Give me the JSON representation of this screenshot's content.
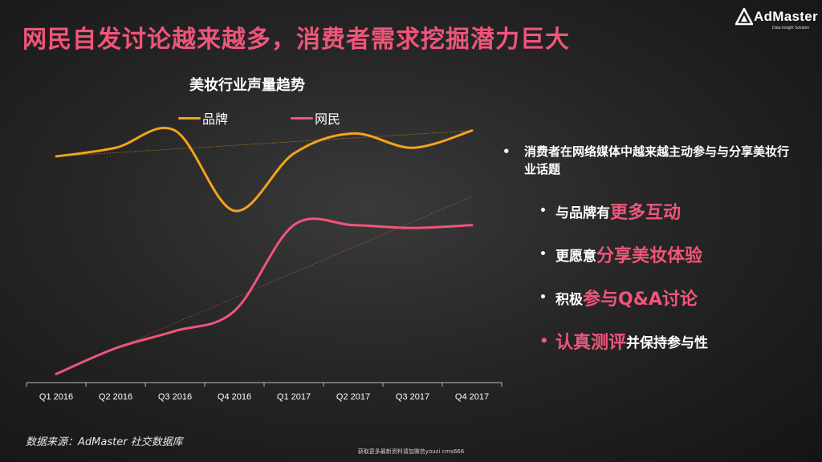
{
  "slide": {
    "title": "网民自发讨论越来越多，消费者需求挖掘潜力巨大",
    "logo_text": "AdMaster",
    "logo_tagline": "Data Insight Solution",
    "source": "数据来源：AdMaster 社交数据库",
    "footer": "获取更多最新资料请加微信youzi cms666"
  },
  "bullets": {
    "main": "消费者在网络媒体中越来越主动参与与分享美妆行业话题",
    "sub": [
      {
        "pre": "与品牌有",
        "hl": "更多互动",
        "post": ""
      },
      {
        "pre": "更愿意",
        "hl": "分享美妆体验",
        "post": ""
      },
      {
        "pre": "积极",
        "hl": "参与Q&A讨论",
        "post": ""
      },
      {
        "pre": "",
        "hl": "认真测评",
        "post": "并保持参与性"
      }
    ]
  },
  "colors": {
    "accent": "#f0557a",
    "brand_series": "#f5a31a",
    "netizen_series": "#f0557a"
  },
  "chart_data": {
    "type": "line",
    "title": "美妆行业声量趋势",
    "categories": [
      "Q1 2016",
      "Q2 2016",
      "Q3 2016",
      "Q4 2016",
      "Q1 2017",
      "Q2 2017",
      "Q3 2017",
      "Q4 2017"
    ],
    "series": [
      {
        "name": "品牌",
        "color": "#f5a31a",
        "values": [
          79,
          82,
          88,
          60,
          80,
          87,
          82,
          88
        ],
        "trendline": [
          79,
          88
        ]
      },
      {
        "name": "网民",
        "color": "#f0557a",
        "values": [
          3,
          12,
          18,
          25,
          55,
          55,
          54,
          55
        ],
        "trendline": [
          3,
          65
        ]
      }
    ],
    "ylim": [
      0,
      100
    ],
    "legend_position": "top",
    "grid": false,
    "axis_labels_shown": false
  }
}
